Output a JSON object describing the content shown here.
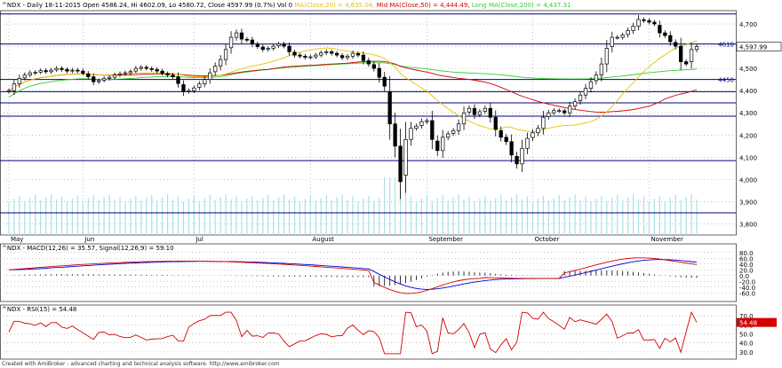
{
  "chart_data": [
    {
      "type": "candlestick",
      "title_prefix": "^NDX - Daily 18-11-2015",
      "ohlc_text": "Open 4586.24, Hi 4602.09, Lo 4580.72, Close 4597.99 (0.7%) Vol 0",
      "ma_labels": {
        "ma20": "MA(Close,20) = 4,635.04,",
        "mid50": "Mid MA(Close,50) = 4,444.49,",
        "long200": "Long MA(Close,200) = 4,437.31"
      },
      "colors": {
        "ma20": "#e8c000",
        "mid50": "#d40000",
        "long200": "#33cc33",
        "hlines": "#000080",
        "volume": "#a8e0e6"
      },
      "ylim": [
        3750,
        4760
      ],
      "y_ticks": [
        3800,
        3900,
        4000,
        4100,
        4200,
        4300,
        4400,
        4500,
        4600,
        4700
      ],
      "y_tick_labels": [
        "3,800",
        "3,900",
        "4,000",
        "4,100",
        "4,200",
        "4,300",
        "4,400",
        "4,500",
        "4,600",
        "4,700"
      ],
      "hlines": [
        4745,
        4610,
        4450,
        4395,
        4345,
        4285,
        4085,
        3850
      ],
      "hline_labels": [
        {
          "value": 4610,
          "text": "4610"
        },
        {
          "value": 4450,
          "text": "4450"
        }
      ],
      "last_price_label": "4,597.99",
      "months": [
        {
          "i": 0,
          "label": "May"
        },
        {
          "i": 14,
          "label": "Jun"
        },
        {
          "i": 35,
          "label": "Jul"
        },
        {
          "i": 57,
          "label": "August"
        },
        {
          "i": 79,
          "label": "September"
        },
        {
          "i": 99,
          "label": "October"
        },
        {
          "i": 121,
          "label": "November"
        }
      ],
      "candles": [],
      "volume": []
    },
    {
      "type": "line",
      "title": "^NDX - MACD(12,26) = 35.57, Signal(12,26,9) = 59.10",
      "ylim": [
        -90,
        110
      ],
      "y_ticks": [
        -60,
        -40,
        -20,
        0,
        20,
        40,
        60,
        80
      ],
      "y_tick_labels": [
        "-60.0",
        "-40.0",
        "-20.0",
        "0.0",
        "20.0",
        "40.0",
        "60.0",
        "80.0"
      ],
      "series": [
        {
          "name": "MACD(12,26)",
          "color": "#d40000"
        },
        {
          "name": "Signal(12,26,9)",
          "color": "#0000cc"
        }
      ],
      "macd": [],
      "signal": []
    },
    {
      "type": "line",
      "title": "^NDX - RSI(15) = 54.48",
      "ylim": [
        22,
        82
      ],
      "y_ticks": [
        30,
        40,
        50,
        60,
        70
      ],
      "y_tick_labels": [
        "30.0",
        "40.0",
        "50.0",
        "60.0",
        "70.0"
      ],
      "last_label": "54.48",
      "series": [
        {
          "name": "RSI(15)",
          "color": "#d40000"
        }
      ],
      "rsi": []
    }
  ],
  "footer": "Created with AmiBroker - advanced charting and technical analysis software. http://www.amibroker.com"
}
